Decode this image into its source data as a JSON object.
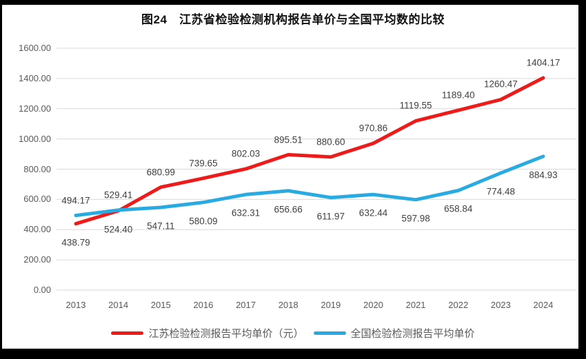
{
  "title": "图24　江苏省检验检测机构报告单价与全国平均数的比较",
  "chart_data": {
    "type": "line",
    "categories": [
      "2013",
      "2014",
      "2015",
      "2016",
      "2017",
      "2018",
      "2019",
      "2020",
      "2021",
      "2022",
      "2023",
      "2024"
    ],
    "series": [
      {
        "name": "江苏检验检测报告平均单价（元）",
        "color": "#ee1b1b",
        "values": [
          438.79,
          524.4,
          680.99,
          739.65,
          802.03,
          895.51,
          880.6,
          970.86,
          1119.55,
          1189.4,
          1260.47,
          1404.17
        ]
      },
      {
        "name": "全国检验检测报告平均单价",
        "color": "#29abe2",
        "values": [
          494.17,
          529.41,
          547.11,
          580.09,
          632.31,
          656.66,
          611.97,
          632.44,
          597.98,
          658.84,
          774.48,
          884.93
        ]
      }
    ],
    "ylim": [
      0,
      1600
    ],
    "ytick_step": 200,
    "ytick_label_decimals": 2,
    "data_label_decimals": 2,
    "grid": true,
    "legend_position": "bottom",
    "xlabel": "",
    "ylabel": ""
  },
  "colors": {
    "grid": "#d9d9d9",
    "axis_text": "#595959",
    "data_label_text": "#404040",
    "title_text": "#111111",
    "background": "#ffffff",
    "frame": "#000000"
  }
}
